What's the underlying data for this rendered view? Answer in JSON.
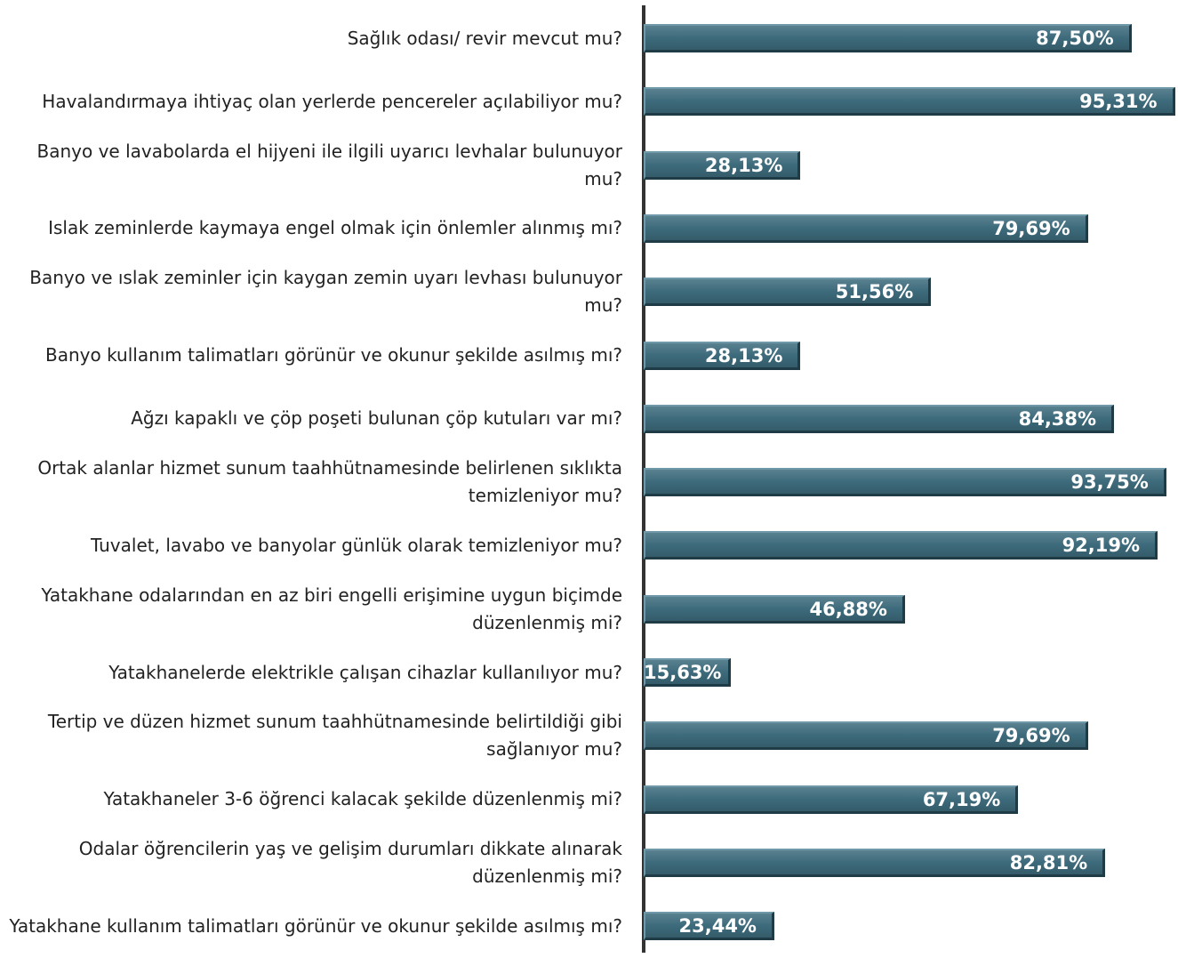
{
  "chart_data": {
    "type": "barh",
    "categories": [
      "Sağlık odası/ revir mevcut mu?",
      "Havalandırmaya ihtiyaç olan yerlerde pencereler açılabiliyor mu?",
      "Banyo ve lavabolarda el hijyeni ile ilgili uyarıcı levhalar bulunuyor mu?",
      "Islak zeminlerde kaymaya engel olmak için önlemler alınmış mı?",
      "Banyo ve ıslak zeminler için kaygan zemin uyarı levhası bulunuyor mu?",
      "Banyo kullanım talimatları görünür ve okunur şekilde asılmış mı?",
      "Ağzı kapaklı ve çöp poşeti bulunan çöp kutuları var mı?",
      "Ortak alanlar hizmet sunum taahhütnamesinde belirlenen sıklıkta temizleniyor mu?",
      "Tuvalet, lavabo ve banyolar günlük olarak temizleniyor mu?",
      "Yatakhane odalarından en az biri engelli erişimine uygun biçimde düzenlenmiş mi?",
      "Yatakhanelerde elektrikle çalışan cihazlar kullanılıyor mu?",
      "Tertip ve düzen hizmet sunum taahhütnamesinde belirtildiği gibi sağlanıyor mu?",
      "Yatakhaneler 3-6 öğrenci kalacak şekilde düzenlenmiş mi?",
      "Odalar öğrencilerin yaş ve gelişim durumları dikkate alınarak düzenlenmiş mi?",
      "Yatakhane kullanım talimatları görünür ve okunur şekilde asılmış mı?"
    ],
    "values": [
      87.5,
      95.31,
      28.13,
      79.69,
      51.56,
      28.13,
      84.38,
      93.75,
      92.19,
      46.88,
      15.63,
      79.69,
      67.19,
      82.81,
      23.44
    ],
    "value_labels": [
      "87,50%",
      "95,31%",
      "28,13%",
      "79,69%",
      "51,56%",
      "28,13%",
      "84,38%",
      "93,75%",
      "92,19%",
      "46,88%",
      "15,63%",
      "79,69%",
      "67,19%",
      "82,81%",
      "23,44%"
    ],
    "color": "#3d6b7c",
    "xlim": [
      0,
      100
    ]
  }
}
